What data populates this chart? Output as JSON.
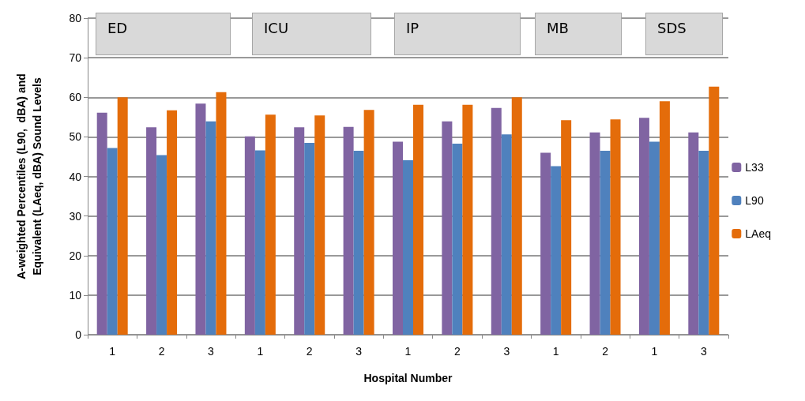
{
  "chart_data": {
    "type": "bar",
    "xlabel": "Hospital Number",
    "ylabel": "A-weighted Percentiles (L90,  dBA) and\nEquivalent (LAeq, dBA) Sound Levels",
    "categories": [
      "1",
      "2",
      "3",
      "1",
      "2",
      "3",
      "1",
      "2",
      "3",
      "1",
      "2",
      "1",
      "3"
    ],
    "series": [
      {
        "name": "L33",
        "color": "#8064a2",
        "values": [
          56.1,
          52.4,
          58.4,
          50.1,
          52.4,
          52.5,
          48.8,
          53.9,
          57.3,
          46.0,
          51.1,
          54.8,
          51.1
        ]
      },
      {
        "name": "L90",
        "color": "#4f81bd",
        "values": [
          47.2,
          45.4,
          53.9,
          46.6,
          48.5,
          46.5,
          44.1,
          48.3,
          50.6,
          42.6,
          46.5,
          48.8,
          46.5
        ]
      },
      {
        "name": "LAeq",
        "color": "#e46c0a",
        "values": [
          60.0,
          56.7,
          61.3,
          55.6,
          55.4,
          56.8,
          58.1,
          58.1,
          60.0,
          54.2,
          54.4,
          59.0,
          62.7
        ]
      }
    ],
    "annotations": [
      "ED",
      "ICU",
      "IP",
      "MB",
      "SDS"
    ],
    "ylim": [
      0,
      80
    ],
    "yticks": [
      0,
      10,
      20,
      30,
      40,
      50,
      60,
      70,
      80
    ],
    "grid": "y",
    "legend": "right"
  }
}
